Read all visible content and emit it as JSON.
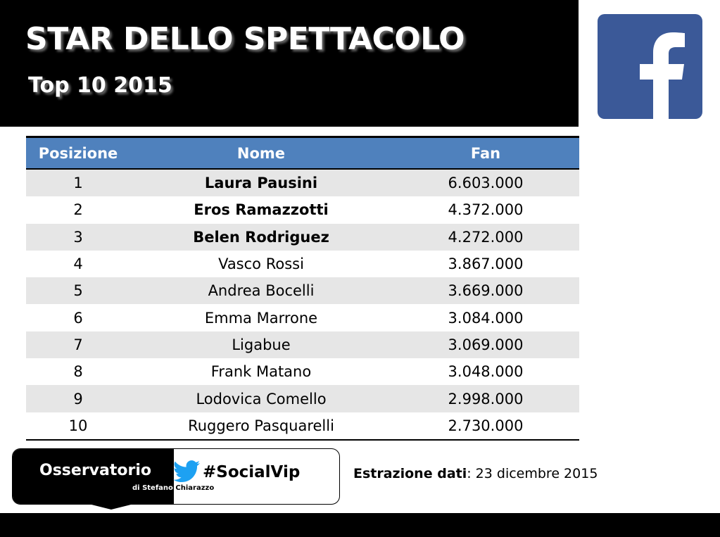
{
  "header": {
    "title": "STAR DELLO SPETTACOLO",
    "subtitle": "Top 10 2015"
  },
  "logo": {
    "icon": "facebook-logo",
    "color": "#3b5998"
  },
  "table": {
    "columns": [
      "Posizione",
      "Nome",
      "Fan"
    ],
    "header_color": "#4f81bd",
    "rows": [
      {
        "pos": "1",
        "name": "Laura Pausini",
        "fan": "6.603.000"
      },
      {
        "pos": "2",
        "name": "Eros Ramazzotti",
        "fan": "4.372.000"
      },
      {
        "pos": "3",
        "name": "Belen Rodriguez",
        "fan": "4.272.000"
      },
      {
        "pos": "4",
        "name": "Vasco Rossi",
        "fan": "3.867.000"
      },
      {
        "pos": "5",
        "name": "Andrea Bocelli",
        "fan": "3.669.000"
      },
      {
        "pos": "6",
        "name": "Emma Marrone",
        "fan": "3.084.000"
      },
      {
        "pos": "7",
        "name": "Ligabue",
        "fan": "3.069.000"
      },
      {
        "pos": "8",
        "name": "Frank Matano",
        "fan": "3.048.000"
      },
      {
        "pos": "9",
        "name": "Lodovica Comello",
        "fan": "2.998.000"
      },
      {
        "pos": "10",
        "name": "Ruggero Pasquarelli",
        "fan": "2.730.000"
      }
    ]
  },
  "badge": {
    "name": "Osservatorio",
    "by_prefix": "di Stefano",
    "by_suffix": "Chiarazzo",
    "hashtag": "#SocialVip",
    "icon": "twitter-bird-icon"
  },
  "extraction": {
    "label": "Estrazione dati",
    "value": ": 23 dicembre 2015"
  }
}
